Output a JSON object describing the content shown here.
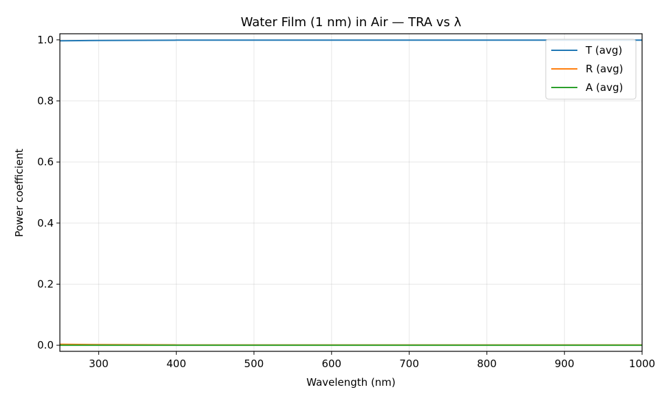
{
  "chart_data": {
    "type": "line",
    "title": "Water Film (1 nm) in Air — TRA vs λ",
    "xlabel": "Wavelength (nm)",
    "ylabel": "Power coefficient",
    "xlim": [
      250,
      1000
    ],
    "ylim": [
      -0.02,
      1.02
    ],
    "xticks": [
      300,
      400,
      500,
      600,
      700,
      800,
      900,
      1000
    ],
    "yticks": [
      0.0,
      0.2,
      0.4,
      0.6,
      0.8,
      1.0
    ],
    "xtick_labels": [
      "300",
      "400",
      "500",
      "600",
      "700",
      "800",
      "900",
      "1000"
    ],
    "ytick_labels": [
      "0.0",
      "0.2",
      "0.4",
      "0.6",
      "0.8",
      "1.0"
    ],
    "grid": true,
    "legend_position": "top-right",
    "x": [
      250,
      300,
      400,
      500,
      600,
      700,
      800,
      900,
      1000
    ],
    "series": [
      {
        "name": "T (avg)",
        "color": "#1f77b4",
        "values": [
          0.997,
          0.998,
          0.999,
          0.999,
          0.999,
          0.999,
          0.999,
          0.999,
          0.999
        ]
      },
      {
        "name": "R (avg)",
        "color": "#ff7f0e",
        "values": [
          0.003,
          0.002,
          0.001,
          0.001,
          0.001,
          0.001,
          0.001,
          0.001,
          0.001
        ]
      },
      {
        "name": "A (avg)",
        "color": "#2ca02c",
        "values": [
          0.0,
          0.0,
          0.0,
          0.0,
          0.0,
          0.0,
          0.0,
          0.0,
          0.0
        ]
      }
    ]
  }
}
